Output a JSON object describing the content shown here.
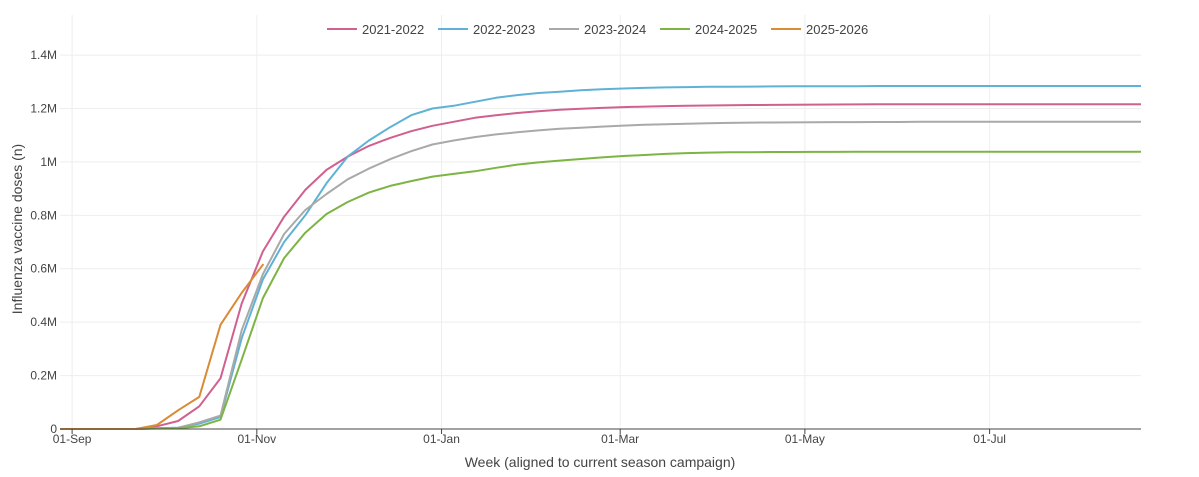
{
  "chart_data": {
    "type": "line",
    "title": "",
    "xlabel": "Week (aligned to current season campaign)",
    "ylabel": "Influenza vaccine doses (n)",
    "xlim_days": [
      -4,
      353
    ],
    "ylim": [
      0,
      1550000
    ],
    "x_tick_days": [
      0,
      61,
      122,
      181,
      242,
      303
    ],
    "x_tick_labels": [
      "01-Sep",
      "01-Nov",
      "01-Jan",
      "01-Mar",
      "01-May",
      "01-Jul"
    ],
    "y_ticks": [
      0,
      200000,
      400000,
      600000,
      800000,
      1000000,
      1200000,
      1400000
    ],
    "y_tick_labels": [
      "0",
      "0.2M",
      "0.4M",
      "0.6M",
      "0.8M",
      "1M",
      "1.2M",
      "1.4M"
    ],
    "grid": true,
    "legend_position": "top-center",
    "series": [
      {
        "name": "2021-2022",
        "color": "#d0608f",
        "x": [
          -7,
          0,
          7,
          14,
          21,
          28,
          35,
          42,
          49,
          56,
          63,
          70,
          77,
          84,
          91,
          98,
          105,
          112,
          119,
          126,
          133,
          140,
          147,
          154,
          161,
          168,
          175,
          182,
          189,
          196,
          203,
          210,
          217,
          224,
          231,
          238,
          245,
          252,
          259,
          266,
          273,
          280,
          287,
          294,
          301,
          308,
          315,
          322,
          329,
          336,
          343,
          350,
          357
        ],
        "values": [
          0,
          0,
          0,
          0,
          0,
          10000,
          30000,
          85000,
          190000,
          470000,
          665000,
          795000,
          895000,
          970000,
          1020000,
          1060000,
          1090000,
          1115000,
          1135000,
          1150000,
          1165000,
          1175000,
          1183000,
          1190000,
          1195000,
          1199000,
          1202000,
          1205000,
          1207000,
          1209000,
          1210000,
          1211000,
          1212000,
          1213000,
          1213500,
          1214000,
          1214500,
          1215000,
          1215200,
          1215500,
          1215700,
          1216000,
          1216000,
          1216000,
          1216000,
          1216000,
          1216000,
          1216000,
          1216000,
          1216000,
          1216000,
          1216000,
          1216000
        ]
      },
      {
        "name": "2022-2023",
        "color": "#5fb2d6",
        "x": [
          -7,
          0,
          7,
          14,
          21,
          28,
          35,
          42,
          49,
          56,
          63,
          70,
          77,
          84,
          91,
          98,
          105,
          112,
          119,
          126,
          133,
          140,
          147,
          154,
          161,
          168,
          175,
          182,
          189,
          196,
          203,
          210,
          217,
          224,
          231,
          238,
          245,
          252,
          259,
          266,
          273,
          280,
          287,
          294,
          301,
          308,
          315,
          322,
          329,
          336,
          343,
          350,
          357
        ],
        "values": [
          0,
          0,
          0,
          0,
          0,
          3000,
          5000,
          20000,
          45000,
          340000,
          560000,
          700000,
          800000,
          920000,
          1020000,
          1080000,
          1130000,
          1175000,
          1200000,
          1210000,
          1225000,
          1240000,
          1250000,
          1258000,
          1263000,
          1268000,
          1272000,
          1275000,
          1277000,
          1279000,
          1280000,
          1281000,
          1281500,
          1282000,
          1282500,
          1283000,
          1283000,
          1283500,
          1283500,
          1284000,
          1284000,
          1284000,
          1284000,
          1284000,
          1284000,
          1284000,
          1284000,
          1284000,
          1284000,
          1284000,
          1284000,
          1284000,
          1284000
        ]
      },
      {
        "name": "2023-2024",
        "color": "#a9a9a9",
        "x": [
          -7,
          0,
          7,
          14,
          21,
          28,
          35,
          42,
          49,
          56,
          63,
          70,
          77,
          84,
          91,
          98,
          105,
          112,
          119,
          126,
          133,
          140,
          147,
          154,
          161,
          168,
          175,
          182,
          189,
          196,
          203,
          210,
          217,
          224,
          231,
          238,
          245,
          252,
          259,
          266,
          273,
          280,
          287,
          294,
          301,
          308,
          315,
          322,
          329,
          336,
          343,
          350,
          357
        ],
        "values": [
          0,
          0,
          0,
          0,
          0,
          3000,
          5000,
          25000,
          50000,
          370000,
          580000,
          730000,
          820000,
          880000,
          935000,
          975000,
          1010000,
          1040000,
          1065000,
          1080000,
          1093000,
          1103000,
          1111000,
          1118000,
          1124000,
          1128000,
          1132000,
          1136000,
          1139000,
          1141000,
          1143000,
          1145000,
          1146000,
          1147000,
          1147500,
          1148000,
          1148500,
          1149000,
          1149000,
          1149500,
          1149500,
          1150000,
          1150000,
          1150000,
          1150000,
          1150000,
          1150000,
          1150000,
          1150000,
          1150000,
          1150000,
          1150000,
          1150000
        ]
      },
      {
        "name": "2024-2025",
        "color": "#7db443",
        "x": [
          -7,
          0,
          7,
          14,
          21,
          28,
          35,
          42,
          49,
          56,
          63,
          70,
          77,
          84,
          91,
          98,
          105,
          112,
          119,
          126,
          133,
          140,
          147,
          154,
          161,
          168,
          175,
          182,
          189,
          196,
          203,
          210,
          217,
          224,
          231,
          238,
          245,
          252,
          259,
          266,
          273,
          280,
          287,
          294,
          301,
          308,
          315,
          322,
          329,
          336,
          343,
          350,
          357
        ],
        "values": [
          0,
          0,
          0,
          0,
          0,
          2000,
          3000,
          10000,
          35000,
          260000,
          490000,
          640000,
          735000,
          805000,
          850000,
          885000,
          910000,
          928000,
          945000,
          955000,
          965000,
          978000,
          990000,
          998000,
          1005000,
          1011000,
          1017000,
          1022000,
          1026000,
          1030000,
          1033000,
          1035000,
          1036000,
          1036500,
          1037000,
          1037000,
          1037500,
          1037500,
          1038000,
          1038000,
          1038000,
          1038000,
          1038000,
          1038000,
          1038000,
          1038000,
          1038000,
          1038000,
          1038000,
          1038000,
          1038000,
          1038000,
          1038000
        ]
      },
      {
        "name": "2025-2026",
        "color": "#d98b35",
        "x": [
          -7,
          0,
          7,
          14,
          21,
          28,
          35,
          42,
          49,
          56,
          63
        ],
        "values": [
          0,
          0,
          0,
          0,
          0,
          15000,
          70000,
          120000,
          390000,
          510000,
          615000
        ]
      }
    ]
  }
}
